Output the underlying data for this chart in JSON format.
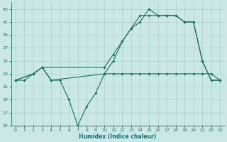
{
  "xlabel": "Humidex (Indice chaleur)",
  "bg_color": "#cce8e6",
  "grid_color": "#aad4d0",
  "line_color": "#1a6e68",
  "xlim": [
    -0.5,
    23.5
  ],
  "ylim": [
    25,
    44
  ],
  "yticks": [
    25,
    27,
    29,
    31,
    33,
    35,
    37,
    39,
    41,
    43
  ],
  "xticks": [
    0,
    1,
    2,
    3,
    4,
    5,
    6,
    7,
    8,
    9,
    10,
    11,
    12,
    13,
    14,
    15,
    16,
    17,
    18,
    19,
    20,
    21,
    22,
    23
  ],
  "line1_x": [
    0,
    1,
    2,
    3,
    4,
    5,
    6,
    7,
    8,
    9,
    10,
    11,
    12,
    13,
    14,
    15,
    16,
    17,
    18,
    19,
    20,
    21,
    22,
    23
  ],
  "line1_y": [
    32,
    32,
    33,
    34,
    32,
    32,
    29,
    25,
    28,
    30,
    33,
    33,
    33,
    33,
    33,
    33,
    33,
    33,
    33,
    33,
    33,
    33,
    33,
    32
  ],
  "line2_x": [
    0,
    2,
    3,
    10,
    11,
    12,
    13,
    14,
    15,
    16,
    17,
    18,
    19,
    20,
    21,
    22,
    23
  ],
  "line2_y": [
    32,
    33,
    34,
    34,
    36,
    38,
    40,
    41,
    43,
    42,
    42,
    42,
    41,
    41,
    35,
    32,
    32
  ],
  "line3_x": [
    0,
    2,
    3,
    4,
    10,
    11,
    12,
    13,
    14,
    15,
    16,
    17,
    18,
    19,
    20,
    21,
    22,
    23
  ],
  "line3_y": [
    32,
    33,
    34,
    32,
    33,
    35,
    38,
    40,
    42,
    42,
    42,
    42,
    42,
    41,
    41,
    35,
    32,
    32
  ]
}
